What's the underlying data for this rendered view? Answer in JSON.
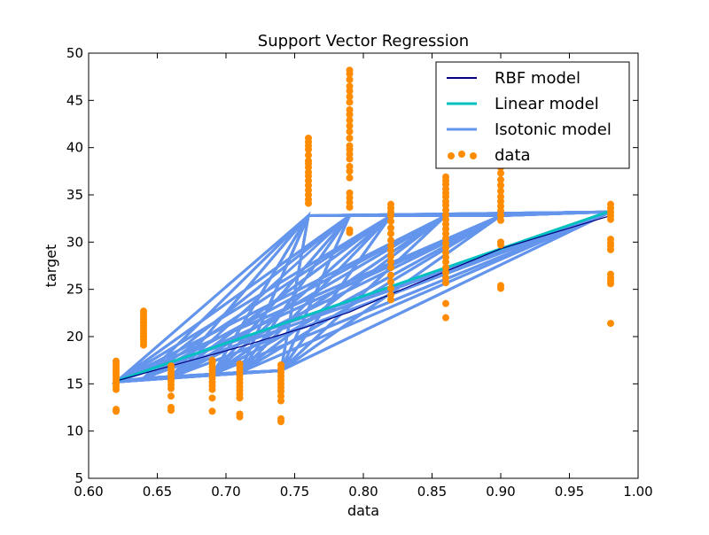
{
  "chart_data": {
    "type": "line",
    "title": "Support Vector Regression",
    "xlabel": "data",
    "ylabel": "target",
    "xlim": [
      0.6,
      1.0
    ],
    "ylim": [
      5,
      50
    ],
    "xticks": [
      "0.60",
      "0.65",
      "0.70",
      "0.75",
      "0.80",
      "0.85",
      "0.90",
      "0.95",
      "1.00"
    ],
    "yticks": [
      "5",
      "10",
      "15",
      "20",
      "25",
      "30",
      "35",
      "40",
      "45",
      "50"
    ],
    "grid": false,
    "legend_position": "upper-right",
    "colors": {
      "rbf": "#000080",
      "linear": "#00c0c0",
      "isotonic": "#6495ed",
      "data": "#ff8c00"
    },
    "series": [
      {
        "name": "RBF model",
        "x": [
          0.62,
          0.64,
          0.66,
          0.69,
          0.71,
          0.74,
          0.76,
          0.79,
          0.82,
          0.86,
          0.9,
          0.98
        ],
        "y": [
          15.3,
          16.1,
          16.9,
          18.1,
          18.9,
          20.2,
          21.1,
          22.6,
          24.5,
          26.9,
          29.3,
          32.8
        ]
      },
      {
        "name": "Linear model",
        "x": [
          0.62,
          0.98
        ],
        "y": [
          15.3,
          33.3
        ]
      },
      {
        "name": "Isotonic model",
        "levels_x": [
          0.62,
          0.64,
          0.66,
          0.69,
          0.71,
          0.74,
          0.76,
          0.79,
          0.82,
          0.86,
          0.9,
          0.98
        ],
        "levels_y": [
          15.2,
          15.6,
          15.7,
          16.0,
          16.2,
          16.4,
          32.8,
          32.8,
          32.8,
          32.8,
          32.8,
          33.2
        ]
      },
      {
        "name": "data",
        "points": [
          {
            "x": 0.62,
            "y": [
              17.4,
              17.1,
              16.8,
              16.5,
              16.2,
              15.9,
              15.6,
              15.3,
              15.0,
              14.7,
              14.4,
              12.1,
              12.3
            ]
          },
          {
            "x": 0.64,
            "y": [
              22.7,
              22.4,
              22.1,
              21.8,
              21.5,
              21.2,
              20.9,
              20.6,
              20.3,
              20.0,
              19.7,
              19.4,
              19.1
            ]
          },
          {
            "x": 0.66,
            "y": [
              16.9,
              16.5,
              16.1,
              15.7,
              15.3,
              14.9,
              14.5,
              13.7,
              12.5,
              12.2
            ]
          },
          {
            "x": 0.69,
            "y": [
              17.5,
              17.2,
              16.8,
              16.4,
              16.0,
              15.6,
              15.2,
              14.8,
              14.4,
              13.5,
              12.1
            ]
          },
          {
            "x": 0.71,
            "y": [
              17.1,
              16.7,
              16.3,
              15.9,
              15.5,
              15.1,
              14.7,
              14.3,
              13.9,
              13.5,
              11.8,
              11.5
            ]
          },
          {
            "x": 0.74,
            "y": [
              17.0,
              16.6,
              16.2,
              15.8,
              15.4,
              15.0,
              14.6,
              14.2,
              13.7,
              13.2,
              11.3,
              11.0
            ]
          },
          {
            "x": 0.76,
            "y": [
              41.0,
              40.6,
              40.2,
              39.8,
              39.2,
              38.6,
              38.3,
              37.9,
              37.4,
              37.0,
              36.5,
              36.0,
              35.5,
              35.0,
              34.5,
              34.1
            ]
          },
          {
            "x": 0.79,
            "y": [
              48.2,
              47.8,
              47.2,
              46.5,
              46.0,
              45.4,
              44.8,
              44.0,
              43.5,
              42.9,
              42.3,
              41.7,
              41.0,
              40.2,
              39.8,
              39.3,
              38.8,
              38.0,
              37.5,
              36.8,
              35.2,
              34.7,
              34.2,
              33.7,
              31.3,
              31.0
            ]
          },
          {
            "x": 0.82,
            "y": [
              34.0,
              33.6,
              33.2,
              32.8,
              32.2,
              31.5,
              30.9,
              30.2,
              29.6,
              29.1,
              28.5,
              27.9,
              27.3,
              26.5,
              25.8,
              25.1,
              24.4,
              23.9
            ]
          },
          {
            "x": 0.86,
            "y": [
              36.9,
              36.5,
              36.1,
              35.6,
              35.2,
              34.8,
              34.3,
              33.9,
              33.4,
              32.9,
              32.4,
              31.9,
              31.4,
              30.9,
              30.4,
              29.9,
              29.4,
              28.9,
              28.4,
              27.9,
              27.3,
              26.8,
              26.2,
              25.7,
              23.5,
              22.0
            ]
          },
          {
            "x": 0.9,
            "y": [
              38.3,
              37.9,
              37.3,
              36.6,
              36.0,
              35.4,
              34.8,
              34.3,
              33.8,
              33.3,
              32.8,
              32.3,
              30.0,
              29.7,
              25.4,
              25.1
            ]
          },
          {
            "x": 0.98,
            "y": [
              34.0,
              33.6,
              33.2,
              32.8,
              32.4,
              30.3,
              29.9,
              29.6,
              29.2,
              26.6,
              26.2,
              25.9,
              25.6,
              21.4
            ]
          }
        ]
      }
    ]
  }
}
